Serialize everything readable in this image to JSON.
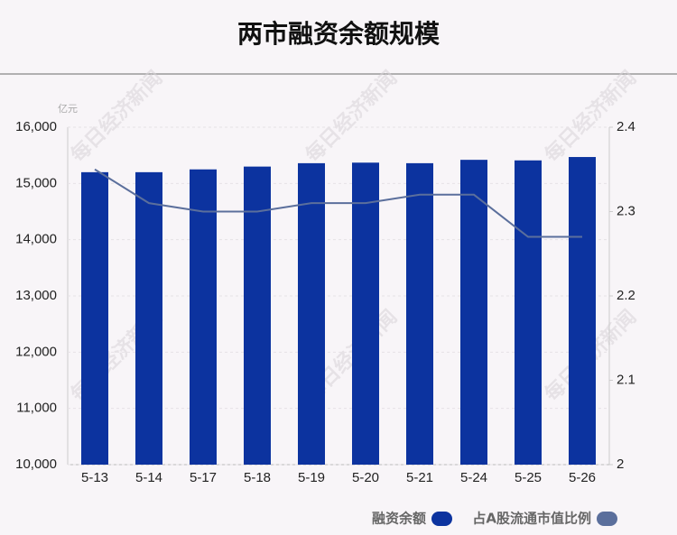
{
  "chart_data": {
    "type": "bar",
    "title": "两市融资余额规模",
    "y_unit": "亿元",
    "watermark": "每日经济新闻",
    "categories": [
      "5-13",
      "5-14",
      "5-17",
      "5-18",
      "5-19",
      "5-20",
      "5-21",
      "5-24",
      "5-25",
      "5-26"
    ],
    "series": [
      {
        "name": "融资余额",
        "type": "bar",
        "color": "#0c339f",
        "values": [
          15200,
          15200,
          15250,
          15300,
          15360,
          15370,
          15360,
          15420,
          15410,
          15470
        ]
      },
      {
        "name": "占A股流通市值比例",
        "type": "line",
        "axis": "y2",
        "color": "#5b6f9c",
        "values": [
          2.35,
          2.31,
          2.3,
          2.3,
          2.31,
          2.31,
          2.32,
          2.32,
          2.27,
          2.27
        ]
      }
    ],
    "ylim": [
      10000,
      16000
    ],
    "yticks": [
      {
        "value": 10000,
        "label": "10,000"
      },
      {
        "value": 11000,
        "label": "11,000"
      },
      {
        "value": 12000,
        "label": "12,000"
      },
      {
        "value": 13000,
        "label": "13,000"
      },
      {
        "value": 14000,
        "label": "14,000"
      },
      {
        "value": 15000,
        "label": "15,000"
      },
      {
        "value": 16000,
        "label": "16,000"
      }
    ],
    "y2lim": [
      2,
      2.4
    ],
    "y2ticks": [
      2,
      2.1,
      2.2,
      2.3,
      2.4
    ],
    "grid": true
  }
}
